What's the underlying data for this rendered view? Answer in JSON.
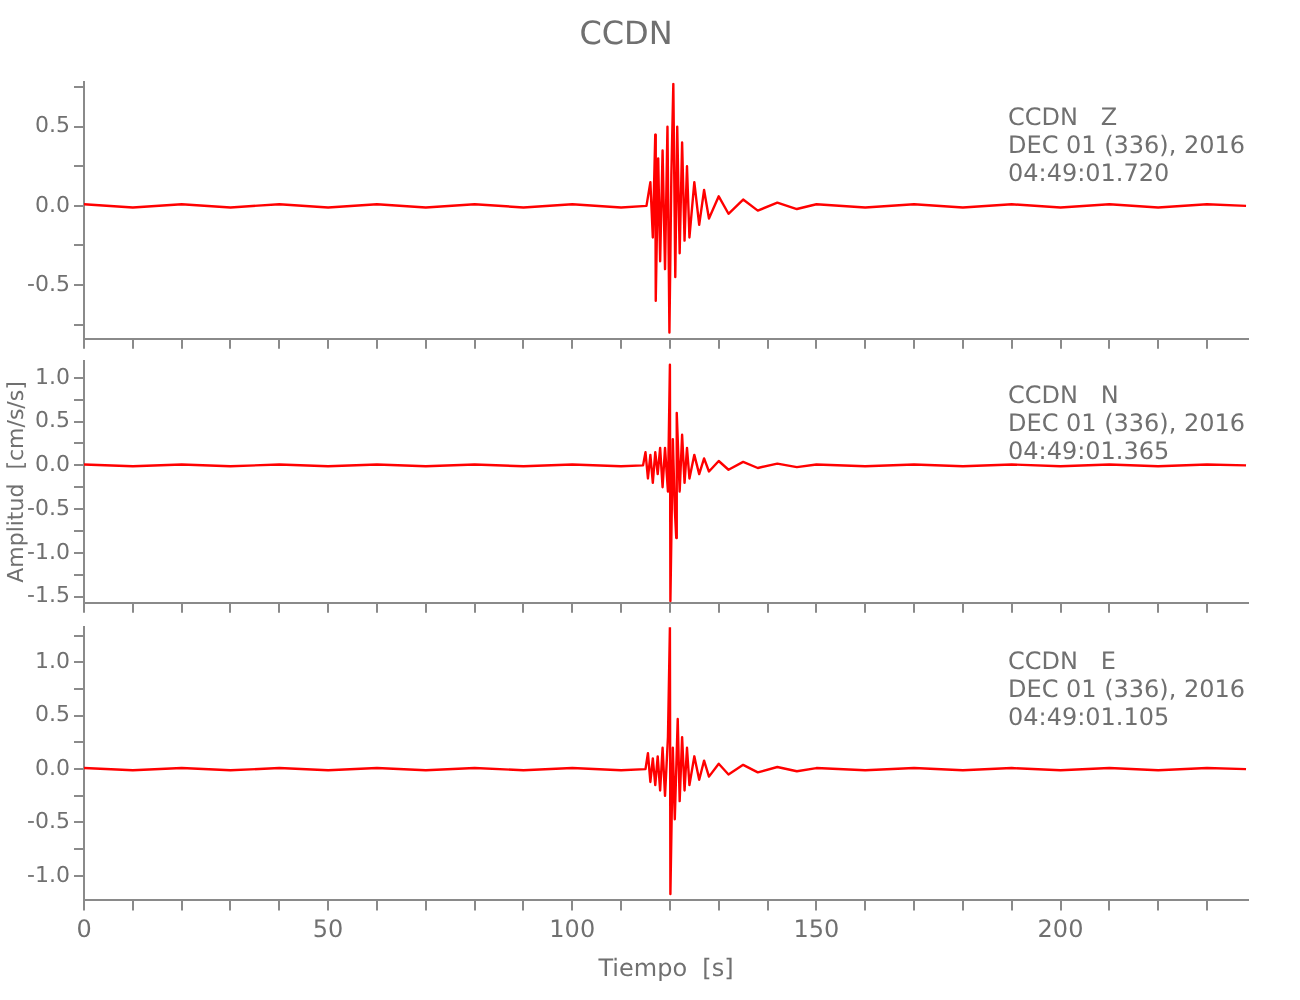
{
  "chart_data": [
    {
      "type": "line",
      "title": "CCDN",
      "annotations": [
        "CCDN   Z",
        "DEC 01 (336), 2016",
        "04:49:01.720"
      ],
      "tick_labels": "y",
      "xlim": [
        0,
        238.4
      ],
      "xticks": [
        {
          "value": 0,
          "label": null
        },
        {
          "value": 10,
          "label": null
        },
        {
          "value": 20,
          "label": null
        },
        {
          "value": 30,
          "label": null
        },
        {
          "value": 40,
          "label": null
        },
        {
          "value": 50,
          "label": null
        },
        {
          "value": 60,
          "label": null
        },
        {
          "value": 70,
          "label": null
        },
        {
          "value": 80,
          "label": null
        },
        {
          "value": 90,
          "label": null
        },
        {
          "value": 100,
          "label": null
        },
        {
          "value": 110,
          "label": null
        },
        {
          "value": 120,
          "label": null
        },
        {
          "value": 130,
          "label": null
        },
        {
          "value": 140,
          "label": null
        },
        {
          "value": 150,
          "label": null
        },
        {
          "value": 160,
          "label": null
        },
        {
          "value": 170,
          "label": null
        },
        {
          "value": 180,
          "label": null
        },
        {
          "value": 190,
          "label": null
        },
        {
          "value": 200,
          "label": null
        },
        {
          "value": 210,
          "label": null
        },
        {
          "value": 220,
          "label": null
        },
        {
          "value": 230,
          "label": null
        }
      ],
      "ylim": [
        -0.84,
        0.78
      ],
      "yticks": [
        {
          "value": -0.75,
          "label": null
        },
        {
          "value": -0.5,
          "label": "-0.5"
        },
        {
          "value": -0.25,
          "label": null
        },
        {
          "value": 0,
          "label": "0.0"
        },
        {
          "value": 0.25,
          "label": null
        },
        {
          "value": 0.5,
          "label": "0.5"
        },
        {
          "value": 0.75,
          "label": null
        }
      ],
      "series": [
        {
          "color": "#ff0000",
          "x": [
            0,
            10,
            20,
            30,
            40,
            50,
            60,
            70,
            80,
            90,
            100,
            110,
            115.2,
            116,
            116.5,
            117,
            117.1,
            117.6,
            118,
            118.5,
            119,
            119.5,
            119.9,
            120.3,
            120.7,
            121.1,
            121.5,
            122,
            122.5,
            123,
            123.5,
            124,
            125,
            126,
            127,
            128,
            130,
            132,
            135,
            138,
            142,
            146,
            150,
            160,
            170,
            180,
            190,
            200,
            210,
            220,
            230,
            238
          ],
          "values": [
            0.01,
            -0.01,
            0.01,
            -0.01,
            0.01,
            -0.01,
            0.01,
            -0.01,
            0.01,
            -0.01,
            0.01,
            -0.01,
            0,
            0.15,
            -0.2,
            0.45,
            -0.6,
            0.3,
            -0.35,
            0.35,
            -0.4,
            0.5,
            -0.8,
            0.2,
            0.77,
            -0.45,
            0.5,
            -0.3,
            0.4,
            -0.22,
            0.25,
            -0.2,
            0.15,
            -0.12,
            0.1,
            -0.08,
            0.06,
            -0.05,
            0.04,
            -0.03,
            0.02,
            -0.02,
            0.01,
            -0.01,
            0.01,
            -0.01,
            0.01,
            -0.01,
            0.01,
            -0.01,
            0.01,
            0
          ]
        }
      ]
    },
    {
      "type": "line",
      "ylabel": "Amplitud  [cm/s/s]",
      "annotations": [
        "CCDN   N",
        "DEC 01 (336), 2016",
        "04:49:01.365"
      ],
      "tick_labels": "y",
      "xlim": [
        0,
        238.4
      ],
      "xticks": [
        {
          "value": 0,
          "label": null
        },
        {
          "value": 10,
          "label": null
        },
        {
          "value": 20,
          "label": null
        },
        {
          "value": 30,
          "label": null
        },
        {
          "value": 40,
          "label": null
        },
        {
          "value": 50,
          "label": null
        },
        {
          "value": 60,
          "label": null
        },
        {
          "value": 70,
          "label": null
        },
        {
          "value": 80,
          "label": null
        },
        {
          "value": 90,
          "label": null
        },
        {
          "value": 100,
          "label": null
        },
        {
          "value": 110,
          "label": null
        },
        {
          "value": 120,
          "label": null
        },
        {
          "value": 130,
          "label": null
        },
        {
          "value": 140,
          "label": null
        },
        {
          "value": 150,
          "label": null
        },
        {
          "value": 160,
          "label": null
        },
        {
          "value": 170,
          "label": null
        },
        {
          "value": 180,
          "label": null
        },
        {
          "value": 190,
          "label": null
        },
        {
          "value": 200,
          "label": null
        },
        {
          "value": 210,
          "label": null
        },
        {
          "value": 220,
          "label": null
        },
        {
          "value": 230,
          "label": null
        }
      ],
      "ylim": [
        -1.57,
        1.19
      ],
      "yticks": [
        {
          "value": -1.5,
          "label": "-1.5"
        },
        {
          "value": -1.25,
          "label": null
        },
        {
          "value": -1,
          "label": "-1.0"
        },
        {
          "value": -0.75,
          "label": null
        },
        {
          "value": -0.5,
          "label": "-0.5"
        },
        {
          "value": -0.25,
          "label": null
        },
        {
          "value": 0,
          "label": "0.0"
        },
        {
          "value": 0.25,
          "label": null
        },
        {
          "value": 0.5,
          "label": "0.5"
        },
        {
          "value": 0.75,
          "label": null
        },
        {
          "value": 1,
          "label": "1.0"
        }
      ],
      "series": [
        {
          "color": "#ff0000",
          "x": [
            0,
            10,
            20,
            30,
            40,
            50,
            60,
            70,
            80,
            90,
            100,
            110,
            114.5,
            115,
            115.5,
            116,
            116.5,
            117,
            117.5,
            118,
            118.5,
            119,
            119.6,
            120,
            120.1,
            120.6,
            121,
            121.3,
            121.4,
            122,
            122.5,
            123,
            123.5,
            124,
            125,
            126,
            127,
            128,
            130,
            132,
            135,
            138,
            142,
            146,
            150,
            160,
            170,
            180,
            190,
            200,
            210,
            220,
            230,
            238
          ],
          "values": [
            0.01,
            -0.01,
            0.01,
            -0.01,
            0.01,
            -0.01,
            0.01,
            -0.01,
            0.01,
            -0.01,
            0.01,
            -0.01,
            0,
            0.15,
            -0.15,
            0.12,
            -0.2,
            0.15,
            -0.1,
            0.2,
            -0.25,
            0.2,
            -0.3,
            1.15,
            -1.55,
            0.3,
            -0.5,
            -0.83,
            0.6,
            -0.3,
            0.35,
            -0.2,
            0.2,
            -0.15,
            0.12,
            -0.1,
            0.08,
            -0.07,
            0.05,
            -0.05,
            0.04,
            -0.03,
            0.02,
            -0.02,
            0.01,
            -0.01,
            0.01,
            -0.01,
            0.01,
            -0.01,
            0.01,
            -0.01,
            0.01,
            0
          ]
        }
      ]
    },
    {
      "type": "line",
      "xlabel": "Tiempo  [s]",
      "annotations": [
        "CCDN   E",
        "DEC 01 (336), 2016",
        "04:49:01.105"
      ],
      "xlim": [
        0,
        238.4
      ],
      "xticks": [
        {
          "value": 0,
          "label": "0"
        },
        {
          "value": 10,
          "label": null
        },
        {
          "value": 20,
          "label": null
        },
        {
          "value": 30,
          "label": null
        },
        {
          "value": 40,
          "label": null
        },
        {
          "value": 50,
          "label": "50"
        },
        {
          "value": 60,
          "label": null
        },
        {
          "value": 70,
          "label": null
        },
        {
          "value": 80,
          "label": null
        },
        {
          "value": 90,
          "label": null
        },
        {
          "value": 100,
          "label": "100"
        },
        {
          "value": 110,
          "label": null
        },
        {
          "value": 120,
          "label": null
        },
        {
          "value": 130,
          "label": null
        },
        {
          "value": 140,
          "label": null
        },
        {
          "value": 150,
          "label": "150"
        },
        {
          "value": 160,
          "label": null
        },
        {
          "value": 170,
          "label": null
        },
        {
          "value": 180,
          "label": null
        },
        {
          "value": 190,
          "label": null
        },
        {
          "value": 200,
          "label": "200"
        },
        {
          "value": 210,
          "label": null
        },
        {
          "value": 220,
          "label": null
        },
        {
          "value": 230,
          "label": null
        }
      ],
      "ylim": [
        -1.23,
        1.33
      ],
      "yticks": [
        {
          "value": -1,
          "label": "-1.0"
        },
        {
          "value": -0.75,
          "label": null
        },
        {
          "value": -0.5,
          "label": "-0.5"
        },
        {
          "value": -0.25,
          "label": null
        },
        {
          "value": 0,
          "label": "0.0"
        },
        {
          "value": 0.25,
          "label": null
        },
        {
          "value": 0.5,
          "label": "0.5"
        },
        {
          "value": 0.75,
          "label": null
        },
        {
          "value": 1,
          "label": "1.0"
        },
        {
          "value": 1.25,
          "label": null
        }
      ],
      "series": [
        {
          "color": "#ff0000",
          "x": [
            0,
            10,
            20,
            30,
            40,
            50,
            60,
            70,
            80,
            90,
            100,
            110,
            115,
            115.5,
            116,
            116.5,
            117,
            117.5,
            118,
            118.5,
            119,
            119.6,
            120,
            120.1,
            120.6,
            121,
            121.6,
            122,
            122.5,
            123,
            123.5,
            124,
            125,
            126,
            127,
            128,
            130,
            132,
            135,
            138,
            142,
            146,
            150,
            160,
            170,
            180,
            190,
            200,
            210,
            220,
            230,
            238
          ],
          "values": [
            0.01,
            -0.01,
            0.01,
            -0.01,
            0.01,
            -0.01,
            0.01,
            -0.01,
            0.01,
            -0.01,
            0.01,
            -0.01,
            0,
            0.15,
            -0.12,
            0.1,
            -0.15,
            0.12,
            -0.2,
            0.2,
            -0.25,
            0.3,
            1.33,
            -1.17,
            0.2,
            -0.47,
            0.47,
            -0.3,
            0.3,
            -0.2,
            0.2,
            -0.15,
            0.12,
            -0.1,
            0.08,
            -0.07,
            0.05,
            -0.05,
            0.04,
            -0.03,
            0.02,
            -0.02,
            0.01,
            -0.01,
            0.01,
            -0.01,
            0.01,
            -0.01,
            0.01,
            -0.01,
            0.01,
            0
          ]
        }
      ]
    }
  ]
}
